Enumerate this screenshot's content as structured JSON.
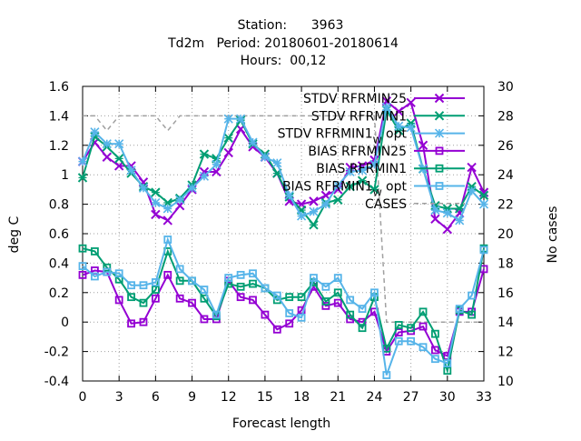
{
  "chart_data": {
    "type": "line",
    "title_lines": [
      "Station:      3963",
      "Td2m   Period: 20180601-20180614",
      "Hours:  00,12"
    ],
    "xlabel": "Forecast length",
    "ylabel": "deg C",
    "y2label": "No cases",
    "xlim": [
      0,
      33
    ],
    "ylim": [
      -0.4,
      1.6
    ],
    "y2lim": [
      10,
      30
    ],
    "x_ticks": [
      0,
      3,
      6,
      9,
      12,
      15,
      18,
      21,
      24,
      27,
      30,
      33
    ],
    "y_ticks": [
      -0.4,
      -0.2,
      0,
      0.2,
      0.4,
      0.6,
      0.8,
      1,
      1.2,
      1.4,
      1.6
    ],
    "y_tick_labels": [
      "-0.4",
      "-0.2",
      "0",
      "0.2",
      "0.4",
      "0.6",
      "0.8",
      "1",
      "1.2",
      "1.4",
      "1.6"
    ],
    "y2_ticks": [
      10,
      12,
      14,
      16,
      18,
      20,
      22,
      24,
      26,
      28,
      30
    ],
    "grid": true,
    "legend_position": "top-right",
    "x": [
      0,
      1,
      2,
      3,
      4,
      5,
      6,
      7,
      8,
      9,
      10,
      11,
      12,
      13,
      14,
      15,
      16,
      17,
      18,
      19,
      20,
      21,
      22,
      23,
      24,
      25,
      26,
      27,
      28,
      29,
      30,
      31,
      32,
      33
    ],
    "series": [
      {
        "name": "STDV RFRMIN25",
        "color": "#9400d3",
        "marker": "cross",
        "axis": "left",
        "values": [
          1.09,
          1.22,
          1.12,
          1.06,
          1.06,
          0.95,
          0.73,
          0.69,
          0.79,
          0.9,
          1.02,
          1.02,
          1.15,
          1.31,
          1.19,
          1.12,
          1.01,
          0.82,
          0.8,
          0.82,
          0.86,
          0.9,
          1.05,
          1.06,
          1.1,
          1.5,
          1.43,
          1.49,
          1.2,
          0.7,
          0.63,
          0.74,
          1.05,
          0.88
        ]
      },
      {
        "name": "STDV RFRMIN1",
        "color": "#009e73",
        "marker": "x",
        "axis": "left",
        "values": [
          0.98,
          1.26,
          1.19,
          1.11,
          1.01,
          0.92,
          0.88,
          0.81,
          0.84,
          0.93,
          1.14,
          1.11,
          1.25,
          1.37,
          1.21,
          1.14,
          1.01,
          0.85,
          0.76,
          0.66,
          0.81,
          0.83,
          0.92,
          0.96,
          0.9,
          1.44,
          1.3,
          1.35,
          1.04,
          0.79,
          0.77,
          0.77,
          0.92,
          0.86
        ]
      },
      {
        "name": "STDV RFRMIN1_W_opt",
        "color": "#56b4e9",
        "marker": "star",
        "axis": "left",
        "values": [
          1.09,
          1.29,
          1.21,
          1.21,
          1.03,
          0.91,
          0.81,
          0.77,
          0.83,
          0.91,
          0.99,
          1.07,
          1.38,
          1.38,
          1.22,
          1.12,
          1.08,
          0.86,
          0.72,
          0.75,
          0.8,
          0.93,
          1.02,
          1.03,
          1.07,
          1.46,
          1.33,
          1.32,
          1.04,
          0.76,
          0.74,
          0.69,
          0.89,
          0.8
        ]
      },
      {
        "name": "BIAS RFRMIN25",
        "color": "#9400d3",
        "marker": "square",
        "axis": "left",
        "values": [
          0.32,
          0.35,
          0.34,
          0.15,
          -0.01,
          0.0,
          0.16,
          0.32,
          0.16,
          0.13,
          0.02,
          0.02,
          0.28,
          0.17,
          0.15,
          0.05,
          -0.05,
          -0.01,
          0.08,
          0.24,
          0.11,
          0.13,
          0.02,
          0.0,
          0.07,
          -0.2,
          -0.07,
          -0.06,
          -0.03,
          -0.19,
          -0.23,
          0.07,
          0.07,
          0.36
        ]
      },
      {
        "name": "BIAS RFRMIN1",
        "color": "#009e73",
        "marker": "square",
        "axis": "left",
        "values": [
          0.5,
          0.48,
          0.37,
          0.29,
          0.17,
          0.13,
          0.22,
          0.48,
          0.28,
          0.28,
          0.16,
          0.04,
          0.26,
          0.24,
          0.26,
          0.23,
          0.15,
          0.17,
          0.17,
          0.27,
          0.14,
          0.2,
          0.05,
          -0.04,
          0.17,
          -0.18,
          -0.02,
          -0.04,
          0.07,
          -0.08,
          -0.33,
          0.08,
          0.05,
          0.5
        ]
      },
      {
        "name": "BIAS RFRMIN1_W_opt",
        "color": "#56b4e9",
        "marker": "square",
        "axis": "left",
        "values": [
          0.38,
          0.31,
          0.34,
          0.33,
          0.25,
          0.25,
          0.27,
          0.56,
          0.36,
          0.28,
          0.22,
          0.05,
          0.3,
          0.32,
          0.33,
          0.23,
          0.18,
          0.06,
          0.03,
          0.3,
          0.24,
          0.3,
          0.15,
          0.09,
          0.2,
          -0.36,
          -0.13,
          -0.13,
          -0.17,
          -0.25,
          -0.28,
          0.09,
          0.18,
          0.49
        ]
      },
      {
        "name": "CASES",
        "color": "#a0a0a0",
        "marker": "none",
        "dashed": true,
        "axis": "right",
        "values": [
          28,
          28,
          27,
          28,
          28,
          28,
          28,
          27,
          28,
          28,
          28,
          28,
          28,
          28,
          28,
          28,
          28,
          28,
          28,
          28,
          28,
          28,
          28,
          28,
          28,
          14,
          14,
          14,
          14,
          14,
          14,
          14,
          14,
          14
        ]
      }
    ]
  }
}
